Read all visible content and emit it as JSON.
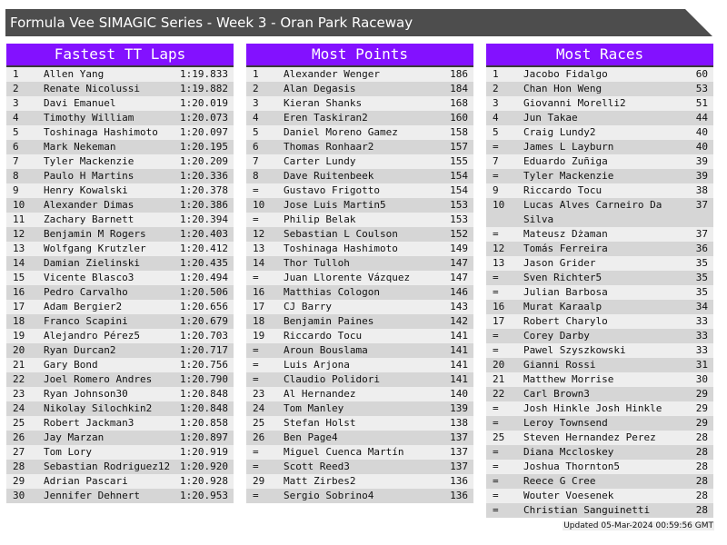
{
  "title": "Formula Vee SIMAGIC Series - Week 3 - Oran Park Raceway",
  "colors": {
    "header_bg": "#8311ff",
    "title_bg": "#4d4d4d",
    "row_light": "#eeeeee",
    "row_dark": "#d6d6d6"
  },
  "panels": [
    {
      "title": "Fastest TT Laps",
      "rows": [
        [
          "1",
          "Allen Yang",
          "1:19.833"
        ],
        [
          "2",
          "Renate Nicolussi",
          "1:19.882"
        ],
        [
          "3",
          "Davi Emanuel",
          "1:20.019"
        ],
        [
          "4",
          "Timothy William",
          "1:20.073"
        ],
        [
          "5",
          "Toshinaga Hashimoto",
          "1:20.097"
        ],
        [
          "6",
          "Mark Nekeman",
          "1:20.195"
        ],
        [
          "7",
          "Tyler Mackenzie",
          "1:20.209"
        ],
        [
          "8",
          "Paulo H Martins",
          "1:20.336"
        ],
        [
          "9",
          "Henry Kowalski",
          "1:20.378"
        ],
        [
          "10",
          "Alexander Dimas",
          "1:20.386"
        ],
        [
          "11",
          "Zachary Barnett",
          "1:20.394"
        ],
        [
          "12",
          "Benjamin M Rogers",
          "1:20.403"
        ],
        [
          "13",
          "Wolfgang Krutzler",
          "1:20.412"
        ],
        [
          "14",
          "Damian Zielinski",
          "1:20.435"
        ],
        [
          "15",
          "Vicente Blasco3",
          "1:20.494"
        ],
        [
          "16",
          "Pedro Carvalho",
          "1:20.506"
        ],
        [
          "17",
          "Adam Bergier2",
          "1:20.656"
        ],
        [
          "18",
          "Franco Scapini",
          "1:20.679"
        ],
        [
          "19",
          "Alejandro Pérez5",
          "1:20.703"
        ],
        [
          "20",
          "Ryan Durcan2",
          "1:20.717"
        ],
        [
          "21",
          "Gary Bond",
          "1:20.756"
        ],
        [
          "22",
          "Joel Romero Andres",
          "1:20.790"
        ],
        [
          "23",
          "Ryan Johnson30",
          "1:20.848"
        ],
        [
          "24",
          "Nikolay Silochkin2",
          "1:20.848"
        ],
        [
          "25",
          "Robert Jackman3",
          "1:20.858"
        ],
        [
          "26",
          "Jay Marzan",
          "1:20.897"
        ],
        [
          "27",
          "Tom Lory",
          "1:20.919"
        ],
        [
          "28",
          "Sebastian Rodriguez12",
          "1:20.920"
        ],
        [
          "29",
          "Adrian Pascari",
          "1:20.928"
        ],
        [
          "30",
          "Jennifer Dehnert",
          "1:20.953"
        ]
      ]
    },
    {
      "title": "Most Points",
      "rows": [
        [
          "1",
          "Alexander Wenger",
          "186"
        ],
        [
          "2",
          "Alan Degasis",
          "184"
        ],
        [
          "3",
          "Kieran Shanks",
          "168"
        ],
        [
          "4",
          "Eren Taskiran2",
          "160"
        ],
        [
          "5",
          "Daniel Moreno Gamez",
          "158"
        ],
        [
          "6",
          "Thomas Ronhaar2",
          "157"
        ],
        [
          "7",
          "Carter Lundy",
          "155"
        ],
        [
          "8",
          "Dave Ruitenbeek",
          "154"
        ],
        [
          "=",
          "Gustavo Frigotto",
          "154"
        ],
        [
          "10",
          "Jose Luis Martin5",
          "153"
        ],
        [
          "=",
          "Philip Belak",
          "153"
        ],
        [
          "12",
          "Sebastian L Coulson",
          "152"
        ],
        [
          "13",
          "Toshinaga Hashimoto",
          "149"
        ],
        [
          "14",
          "Thor Tulloh",
          "147"
        ],
        [
          "=",
          "Juan Llorente Vázquez",
          "147"
        ],
        [
          "16",
          "Matthias Cologon",
          "146"
        ],
        [
          "17",
          "CJ Barry",
          "143"
        ],
        [
          "18",
          "Benjamin Paines",
          "142"
        ],
        [
          "19",
          "Riccardo Tocu",
          "141"
        ],
        [
          "=",
          "Aroun Bouslama",
          "141"
        ],
        [
          "=",
          "Luis Arjona",
          "141"
        ],
        [
          "=",
          "Claudio Polidori",
          "141"
        ],
        [
          "23",
          "Al Hernandez",
          "140"
        ],
        [
          "24",
          "Tom Manley",
          "139"
        ],
        [
          "25",
          "Stefan Holst",
          "138"
        ],
        [
          "26",
          "Ben Page4",
          "137"
        ],
        [
          "=",
          "Miguel Cuenca Martín",
          "137"
        ],
        [
          "=",
          "Scott Reed3",
          "137"
        ],
        [
          "29",
          "Matt Zirbes2",
          "136"
        ],
        [
          "=",
          "Sergio Sobrino4",
          "136"
        ]
      ]
    },
    {
      "title": "Most Races",
      "rows": [
        [
          "1",
          "Jacobo Fidalgo",
          "60"
        ],
        [
          "2",
          "Chan Hon Weng",
          "53"
        ],
        [
          "3",
          "Giovanni Morelli2",
          "51"
        ],
        [
          "4",
          "Jun Takae",
          "44"
        ],
        [
          "5",
          "Craig Lundy2",
          "40"
        ],
        [
          "=",
          "James L Layburn",
          "40"
        ],
        [
          "7",
          "Eduardo Zuñiga",
          "39"
        ],
        [
          "=",
          "Tyler Mackenzie",
          "39"
        ],
        [
          "9",
          "Riccardo Tocu",
          "38"
        ],
        [
          "10",
          "Lucas Alves Carneiro Da Silva",
          "37"
        ],
        [
          "=",
          "Mateusz Dżaman",
          "37"
        ],
        [
          "12",
          "Tomás Ferreira",
          "36"
        ],
        [
          "13",
          "Jason Grider",
          "35"
        ],
        [
          "=",
          "Sven Richter5",
          "35"
        ],
        [
          "=",
          "Julian Barbosa",
          "35"
        ],
        [
          "16",
          "Murat Karaalp",
          "34"
        ],
        [
          "17",
          "Robert Charylo",
          "33"
        ],
        [
          "=",
          "Corey Darby",
          "33"
        ],
        [
          "=",
          "Pawel Szyszkowski",
          "33"
        ],
        [
          "20",
          "Gianni Rossi",
          "31"
        ],
        [
          "21",
          "Matthew Morrise",
          "30"
        ],
        [
          "22",
          "Carl Brown3",
          "29"
        ],
        [
          "=",
          "Josh Hinkle Josh Hinkle",
          "29"
        ],
        [
          "=",
          "Leroy Townsend",
          "29"
        ],
        [
          "25",
          "Steven Hernandez Perez",
          "28"
        ],
        [
          "=",
          "Diana Mccloskey",
          "28"
        ],
        [
          "=",
          "Joshua Thornton5",
          "28"
        ],
        [
          "=",
          "Reece G Cree",
          "28"
        ],
        [
          "=",
          "Wouter Voesenek",
          "28"
        ],
        [
          "=",
          "Christian Sanguinetti",
          "28"
        ]
      ]
    }
  ],
  "updated": "Updated 05-Mar-2024 00:59:56 GMT"
}
